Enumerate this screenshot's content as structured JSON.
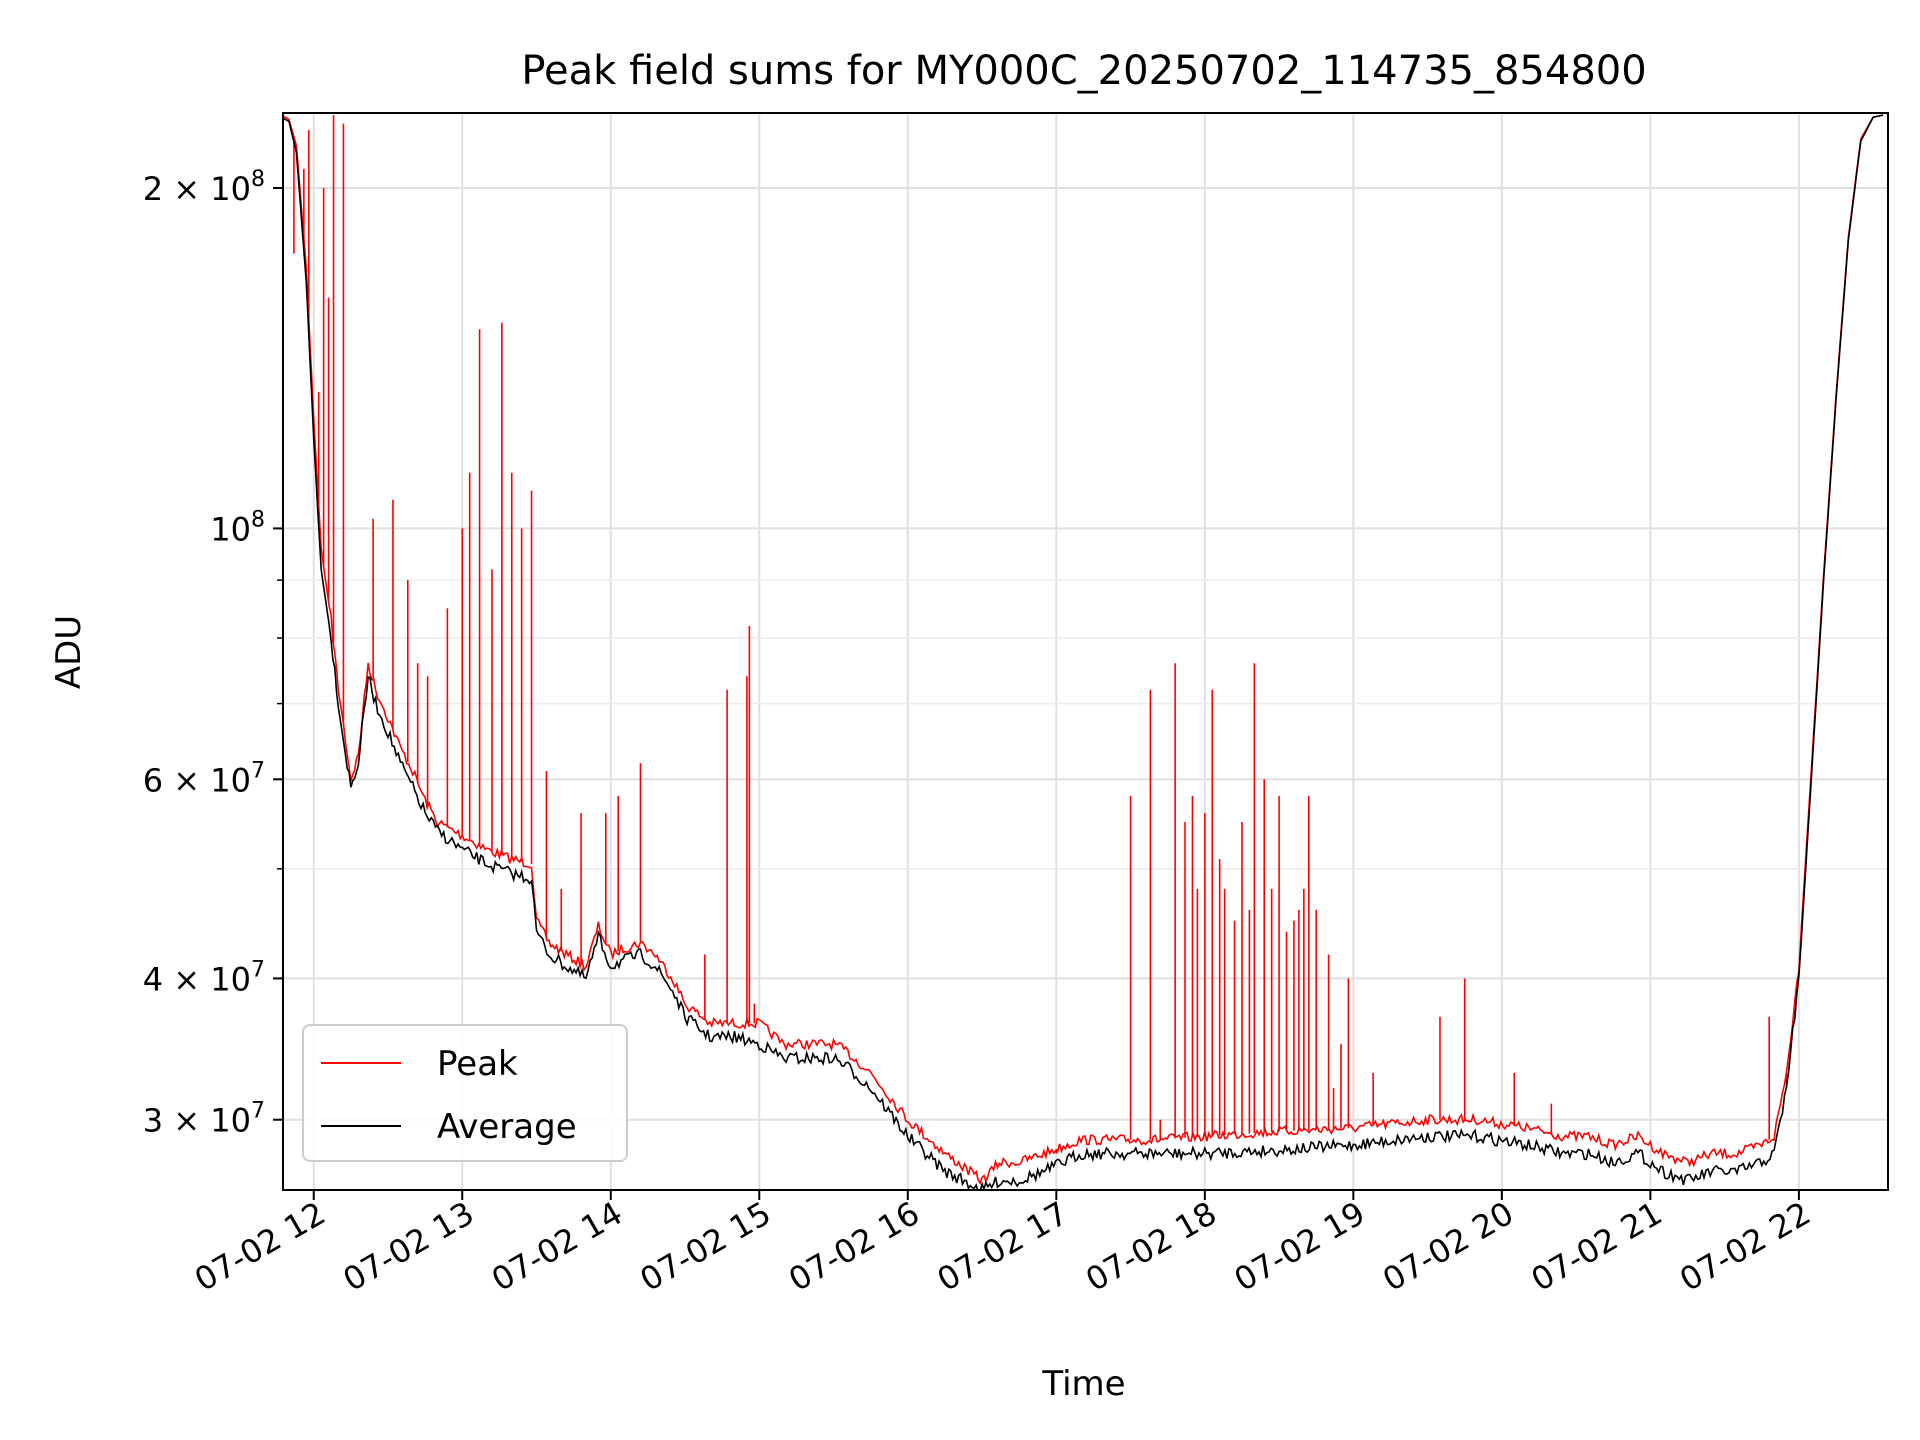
{
  "chart_data": {
    "type": "line",
    "title": "Peak field sums for MY000C_20250702_114735_854800",
    "xlabel": "Time",
    "ylabel": "ADU",
    "yscale": "log",
    "xlim": [
      "2025-07-02T11:47:35",
      "2025-07-02T22:36:00"
    ],
    "ylim": [
      26000000,
      233000000
    ],
    "grid": true,
    "legend_position": "lower-left",
    "x_tick_labels": [
      "07-02 12",
      "07-02 13",
      "07-02 14",
      "07-02 15",
      "07-02 16",
      "07-02 17",
      "07-02 18",
      "07-02 19",
      "07-02 20",
      "07-02 21",
      "07-02 22"
    ],
    "x_tick_values": [
      "2025-07-02T12:00",
      "2025-07-02T13:00",
      "2025-07-02T14:00",
      "2025-07-02T15:00",
      "2025-07-02T16:00",
      "2025-07-02T17:00",
      "2025-07-02T18:00",
      "2025-07-02T19:00",
      "2025-07-02T20:00",
      "2025-07-02T21:00",
      "2025-07-02T22:00"
    ],
    "y_ticks": [
      {
        "value": 200000000,
        "mantissa": "2",
        "exponent": "8"
      },
      {
        "value": 100000000,
        "mantissa": "",
        "exponent": "8"
      },
      {
        "value": 60000000,
        "mantissa": "6",
        "exponent": "7"
      },
      {
        "value": 40000000,
        "mantissa": "4",
        "exponent": "7"
      },
      {
        "value": 30000000,
        "mantissa": "3",
        "exponent": "7"
      }
    ],
    "y_minor_ticks": [
      50000000,
      70000000,
      80000000,
      90000000
    ],
    "series": [
      {
        "name": "Average",
        "color": "#000000",
        "x": [
          "2025-07-02T11:47",
          "2025-07-02T11:50",
          "2025-07-02T11:53",
          "2025-07-02T11:57",
          "2025-07-02T12:00",
          "2025-07-02T12:03",
          "2025-07-02T12:07",
          "2025-07-02T12:10",
          "2025-07-02T12:12",
          "2025-07-02T12:15",
          "2025-07-02T12:18",
          "2025-07-02T12:22",
          "2025-07-02T12:25",
          "2025-07-02T12:30",
          "2025-07-02T12:35",
          "2025-07-02T12:40",
          "2025-07-02T12:45",
          "2025-07-02T12:50",
          "2025-07-02T13:00",
          "2025-07-02T13:10",
          "2025-07-02T13:20",
          "2025-07-02T13:28",
          "2025-07-02T13:30",
          "2025-07-02T13:35",
          "2025-07-02T13:42",
          "2025-07-02T13:50",
          "2025-07-02T13:55",
          "2025-07-02T14:00",
          "2025-07-02T14:05",
          "2025-07-02T14:12",
          "2025-07-02T14:18",
          "2025-07-02T14:25",
          "2025-07-02T14:30",
          "2025-07-02T14:40",
          "2025-07-02T14:50",
          "2025-07-02T15:00",
          "2025-07-02T15:10",
          "2025-07-02T15:20",
          "2025-07-02T15:30",
          "2025-07-02T15:35",
          "2025-07-02T15:45",
          "2025-07-02T16:00",
          "2025-07-02T16:15",
          "2025-07-02T16:30",
          "2025-07-02T16:37",
          "2025-07-02T16:45",
          "2025-07-02T16:55",
          "2025-07-02T17:10",
          "2025-07-02T17:25",
          "2025-07-02T17:40",
          "2025-07-02T18:00",
          "2025-07-02T18:30",
          "2025-07-02T19:00",
          "2025-07-02T19:30",
          "2025-07-02T19:50",
          "2025-07-02T20:10",
          "2025-07-02T20:25",
          "2025-07-02T20:35",
          "2025-07-02T20:45",
          "2025-07-02T20:55",
          "2025-07-02T21:05",
          "2025-07-02T21:15",
          "2025-07-02T21:25",
          "2025-07-02T21:35",
          "2025-07-02T21:45",
          "2025-07-02T21:50",
          "2025-07-02T21:55",
          "2025-07-02T22:00",
          "2025-07-02T22:05",
          "2025-07-02T22:10",
          "2025-07-02T22:15",
          "2025-07-02T22:20",
          "2025-07-02T22:25",
          "2025-07-02T22:30",
          "2025-07-02T22:34"
        ],
        "y": [
          231000000,
          229000000,
          215000000,
          165000000,
          120000000,
          92000000,
          80000000,
          70000000,
          65000000,
          59000000,
          62000000,
          74000000,
          70000000,
          66000000,
          62000000,
          59000000,
          56000000,
          54000000,
          52000000,
          50500000,
          49500000,
          49000000,
          44000000,
          42000000,
          41000000,
          40000000,
          43500000,
          41000000,
          41500000,
          42000000,
          41000000,
          39000000,
          37000000,
          35500000,
          35500000,
          35000000,
          34000000,
          34000000,
          34000000,
          33500000,
          32000000,
          29000000,
          27000000,
          26000000,
          26500000,
          26500000,
          27000000,
          28000000,
          28000000,
          28000000,
          28000000,
          28200000,
          28500000,
          29000000,
          29000000,
          28500000,
          28000000,
          28000000,
          27500000,
          28000000,
          27000000,
          26500000,
          27000000,
          27000000,
          27500000,
          28000000,
          32000000,
          40000000,
          60000000,
          90000000,
          130000000,
          180000000,
          220000000,
          231000000,
          232000000
        ]
      },
      {
        "name": "Peak",
        "color": "#ff0000",
        "x": [
          "2025-07-02T11:47",
          "2025-07-02T11:50",
          "2025-07-02T11:53",
          "2025-07-02T11:57",
          "2025-07-02T12:00",
          "2025-07-02T12:03",
          "2025-07-02T12:07",
          "2025-07-02T12:10",
          "2025-07-02T12:12",
          "2025-07-02T12:15",
          "2025-07-02T12:18",
          "2025-07-02T12:22",
          "2025-07-02T12:25",
          "2025-07-02T12:30",
          "2025-07-02T12:35",
          "2025-07-02T12:40",
          "2025-07-02T12:45",
          "2025-07-02T12:50",
          "2025-07-02T13:00",
          "2025-07-02T13:10",
          "2025-07-02T13:20",
          "2025-07-02T13:28",
          "2025-07-02T13:30",
          "2025-07-02T13:35",
          "2025-07-02T13:42",
          "2025-07-02T13:50",
          "2025-07-02T13:55",
          "2025-07-02T14:00",
          "2025-07-02T14:05",
          "2025-07-02T14:12",
          "2025-07-02T14:18",
          "2025-07-02T14:25",
          "2025-07-02T14:30",
          "2025-07-02T14:40",
          "2025-07-02T14:50",
          "2025-07-02T15:00",
          "2025-07-02T15:10",
          "2025-07-02T15:20",
          "2025-07-02T15:30",
          "2025-07-02T15:35",
          "2025-07-02T15:45",
          "2025-07-02T16:00",
          "2025-07-02T16:15",
          "2025-07-02T16:30",
          "2025-07-02T16:37",
          "2025-07-02T16:45",
          "2025-07-02T16:55",
          "2025-07-02T17:10",
          "2025-07-02T17:25",
          "2025-07-02T17:40",
          "2025-07-02T18:00",
          "2025-07-02T18:30",
          "2025-07-02T19:00",
          "2025-07-02T19:30",
          "2025-07-02T19:50",
          "2025-07-02T20:10",
          "2025-07-02T20:25",
          "2025-07-02T20:35",
          "2025-07-02T20:45",
          "2025-07-02T20:55",
          "2025-07-02T21:05",
          "2025-07-02T21:15",
          "2025-07-02T21:25",
          "2025-07-02T21:35",
          "2025-07-02T21:45",
          "2025-07-02T21:50",
          "2025-07-02T21:55",
          "2025-07-02T22:00",
          "2025-07-02T22:05",
          "2025-07-02T22:10",
          "2025-07-02T22:15",
          "2025-07-02T22:20",
          "2025-07-02T22:25",
          "2025-07-02T22:30",
          "2025-07-02T22:34"
        ],
        "y": [
          232000000,
          230000000,
          218000000,
          170000000,
          125000000,
          96000000,
          83000000,
          72000000,
          67000000,
          60000000,
          63000000,
          76000000,
          72000000,
          68000000,
          64000000,
          61000000,
          57500000,
          55000000,
          53500000,
          52000000,
          51000000,
          50500000,
          45000000,
          43000000,
          42000000,
          41000000,
          44500000,
          42000000,
          42500000,
          43000000,
          42000000,
          40000000,
          38000000,
          36500000,
          36500000,
          36500000,
          35000000,
          35000000,
          35000000,
          34500000,
          33000000,
          30000000,
          28000000,
          26500000,
          27500000,
          27500000,
          28000000,
          28800000,
          28800000,
          28800000,
          29000000,
          29300000,
          29500000,
          30000000,
          30000000,
          29500000,
          29000000,
          29000000,
          28500000,
          29000000,
          28000000,
          27500000,
          28000000,
          28000000,
          28500000,
          29000000,
          33000000,
          41000000,
          61000000,
          91000000,
          131000000,
          181000000,
          221000000,
          231000000,
          232000000
        ]
      }
    ],
    "peak_spikes": {
      "x": [
        "2025-07-02T11:52",
        "2025-07-02T11:56",
        "2025-07-02T11:58",
        "2025-07-02T12:02",
        "2025-07-02T12:04",
        "2025-07-02T12:06",
        "2025-07-02T12:08",
        "2025-07-02T12:12",
        "2025-07-02T12:24",
        "2025-07-02T12:32",
        "2025-07-02T12:38",
        "2025-07-02T12:42",
        "2025-07-02T12:46",
        "2025-07-02T12:54",
        "2025-07-02T13:00",
        "2025-07-02T13:03",
        "2025-07-02T13:07",
        "2025-07-02T13:12",
        "2025-07-02T13:16",
        "2025-07-02T13:20",
        "2025-07-02T13:24",
        "2025-07-02T13:28",
        "2025-07-02T13:34",
        "2025-07-02T13:40",
        "2025-07-02T13:48",
        "2025-07-02T13:58",
        "2025-07-02T14:03",
        "2025-07-02T14:12",
        "2025-07-02T14:38",
        "2025-07-02T14:47",
        "2025-07-02T14:55",
        "2025-07-02T14:56",
        "2025-07-02T14:58",
        "2025-07-02T17:00",
        "2025-07-02T17:30",
        "2025-07-02T17:38",
        "2025-07-02T17:42",
        "2025-07-02T17:48",
        "2025-07-02T17:52",
        "2025-07-02T17:55",
        "2025-07-02T17:57",
        "2025-07-02T18:00",
        "2025-07-02T18:03",
        "2025-07-02T18:06",
        "2025-07-02T18:08",
        "2025-07-02T18:12",
        "2025-07-02T18:15",
        "2025-07-02T18:18",
        "2025-07-02T18:20",
        "2025-07-02T18:24",
        "2025-07-02T18:27",
        "2025-07-02T18:30",
        "2025-07-02T18:33",
        "2025-07-02T18:36",
        "2025-07-02T18:38",
        "2025-07-02T18:40",
        "2025-07-02T18:42",
        "2025-07-02T18:45",
        "2025-07-02T18:50",
        "2025-07-02T18:52",
        "2025-07-02T18:55",
        "2025-07-02T18:58",
        "2025-07-02T19:08",
        "2025-07-02T19:35",
        "2025-07-02T19:45",
        "2025-07-02T20:05",
        "2025-07-02T20:20",
        "2025-07-02T21:48",
        "2025-07-02T21:55"
      ],
      "y": [
        175000000,
        208000000,
        225000000,
        132000000,
        200000000,
        160000000,
        232000000,
        228000000,
        102000000,
        106000000,
        90000000,
        76000000,
        74000000,
        85000000,
        100000000,
        112000000,
        150000000,
        92000000,
        152000000,
        112000000,
        100000000,
        108000000,
        61000000,
        48000000,
        56000000,
        56000000,
        58000000,
        62000000,
        42000000,
        72000000,
        74000000,
        82000000,
        38000000,
        28000000,
        58000000,
        72000000,
        30000000,
        76000000,
        55000000,
        58000000,
        48000000,
        56000000,
        72000000,
        51000000,
        48000000,
        45000000,
        55000000,
        46000000,
        76000000,
        60000000,
        48000000,
        58000000,
        44000000,
        45000000,
        46000000,
        48000000,
        58000000,
        46000000,
        42000000,
        32000000,
        35000000,
        40000000,
        33000000,
        37000000,
        40000000,
        33000000,
        31000000,
        37000000,
        32000000
      ]
    }
  },
  "legend": {
    "items": [
      {
        "label": "Peak",
        "color": "#ff0000"
      },
      {
        "label": "Average",
        "color": "#000000"
      }
    ]
  }
}
